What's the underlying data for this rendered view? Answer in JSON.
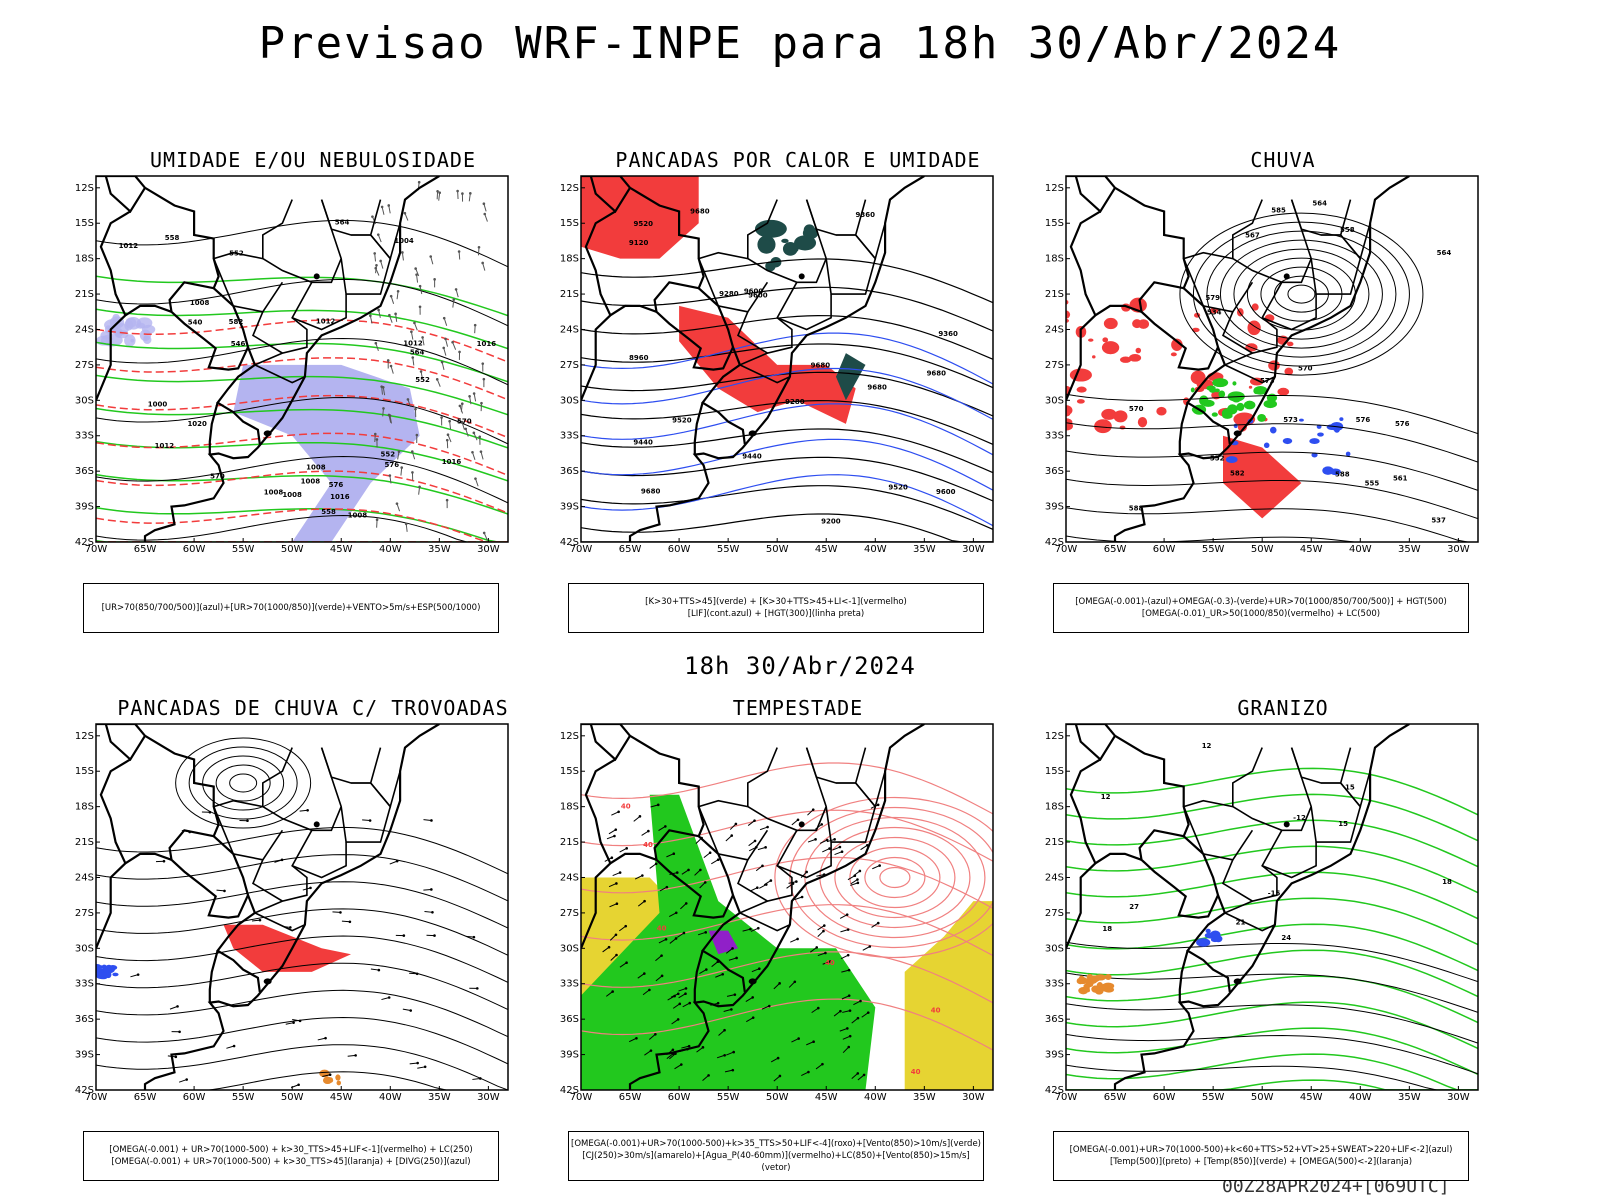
{
  "main_title": "Previsao WRF-INPE  para 18h 30/Abr/2024",
  "mid_title": "18h 30/Abr/2024",
  "footer": "00Z28APR2024+[069UTC]",
  "lat_labels": [
    "12S",
    "15S",
    "18S",
    "21S",
    "24S",
    "27S",
    "30S",
    "33S",
    "36S",
    "39S",
    "42S"
  ],
  "lon_labels": [
    "70W",
    "65W",
    "60W",
    "55W",
    "50W",
    "45W",
    "40W",
    "35W",
    "30W"
  ],
  "colors": {
    "red": "#f23c3c",
    "green": "#22c81e",
    "blue": "#2e4ef0",
    "lavender": "#b4b4f0",
    "darkteal": "#1e4b48",
    "yellow": "#e6d432",
    "purple": "#9020c8",
    "orange": "#e68a2e",
    "lightred": "#f08080",
    "black": "#000000"
  },
  "panels": [
    {
      "title": "UMIDADE E/OU NEBULOSIDADE",
      "legend": [
        "[UR>70(850/700/500)](azul)+[UR>70(1000/850)](verde)+VENTO>5m/s+ESP(500/1000)"
      ],
      "contour_labels": [
        "1008",
        "1008",
        "1012",
        "1012",
        "1016",
        "1012",
        "1008",
        "1000",
        "1012",
        "1008",
        "1020",
        "1016",
        "1008",
        "1008",
        "1004",
        "1016",
        "552",
        "576",
        "570",
        "564",
        "558",
        "552",
        "540",
        "546",
        "576",
        "570",
        "564",
        "558",
        "552",
        "582"
      ]
    },
    {
      "title": "PANCADAS POR CALOR E UMIDADE",
      "legend": [
        "[K>30+TTS>45](verde) + [K>30+TTS>45+LI<-1](vermelho)",
        "[LIF](cont.azul) + [HGT(300)](linha preta)"
      ],
      "contour_labels": [
        "9680",
        "9680",
        "9680",
        "9680",
        "9600",
        "9520",
        "9440",
        "9360",
        "9280",
        "9200",
        "9120",
        "8960",
        "9520",
        "9600",
        "9440",
        "9360",
        "9280",
        "9680",
        "9600",
        "9520"
      ]
    },
    {
      "title": "CHUVA",
      "legend": [
        "[OMEGA(-0.001)-(azul)+OMEGA(-0.3)-(verde)+UR>70(1000/850/700/500)] + HGT(500)",
        "[OMEGA(-0.01)_UR>50(1000/850)(vermelho) + LC(500)"
      ],
      "contour_labels": [
        "588",
        "576",
        "570",
        "573",
        "567",
        "564",
        "561",
        "558",
        "555",
        "552",
        "537",
        "534",
        "582",
        "585",
        "588",
        "579",
        "576",
        "570",
        "573",
        "564"
      ]
    },
    {
      "title": "PANCADAS DE CHUVA C/ TROVOADAS",
      "legend": [
        "[OMEGA(-0.001) + UR>70(1000-500) + k>30_TTS>45+LIF<-1](vermelho) + LC(250)",
        "[OMEGA(-0.001) + UR>70(1000-500) + k>30_TTS>45](laranja) + [DIVG(250)](azul)"
      ],
      "contour_labels": []
    },
    {
      "title": "TEMPESTADE",
      "legend": [
        "[OMEGA(-0.001)+UR>70(1000-500)+k>35_TTS>50+LIF<-4](roxo)+[Vento(850)>10m/s](verde)",
        "[CJ(250)>30m/s](amarelo)+[Agua_P(40-60mm)](vermelho)+LC(850)+[Vento(850)>15m/s](vetor)"
      ],
      "contour_labels": [
        "40",
        "40",
        "40",
        "40",
        "40",
        "40"
      ]
    },
    {
      "title": "GRANIZO",
      "legend": [
        "[OMEGA(-0.001)+UR>70(1000-500)+k<60+TTS>52+VT>25+SWEAT>220+LIF<-2](azul)",
        "[Temp(500)](preto) + [Temp(850)](verde) + [OMEGA(500)<-2](laranja)"
      ],
      "contour_labels": [
        "12",
        "15",
        "18",
        "21",
        "24",
        "27",
        "12",
        "15",
        "18",
        "-12",
        "-15"
      ]
    }
  ]
}
